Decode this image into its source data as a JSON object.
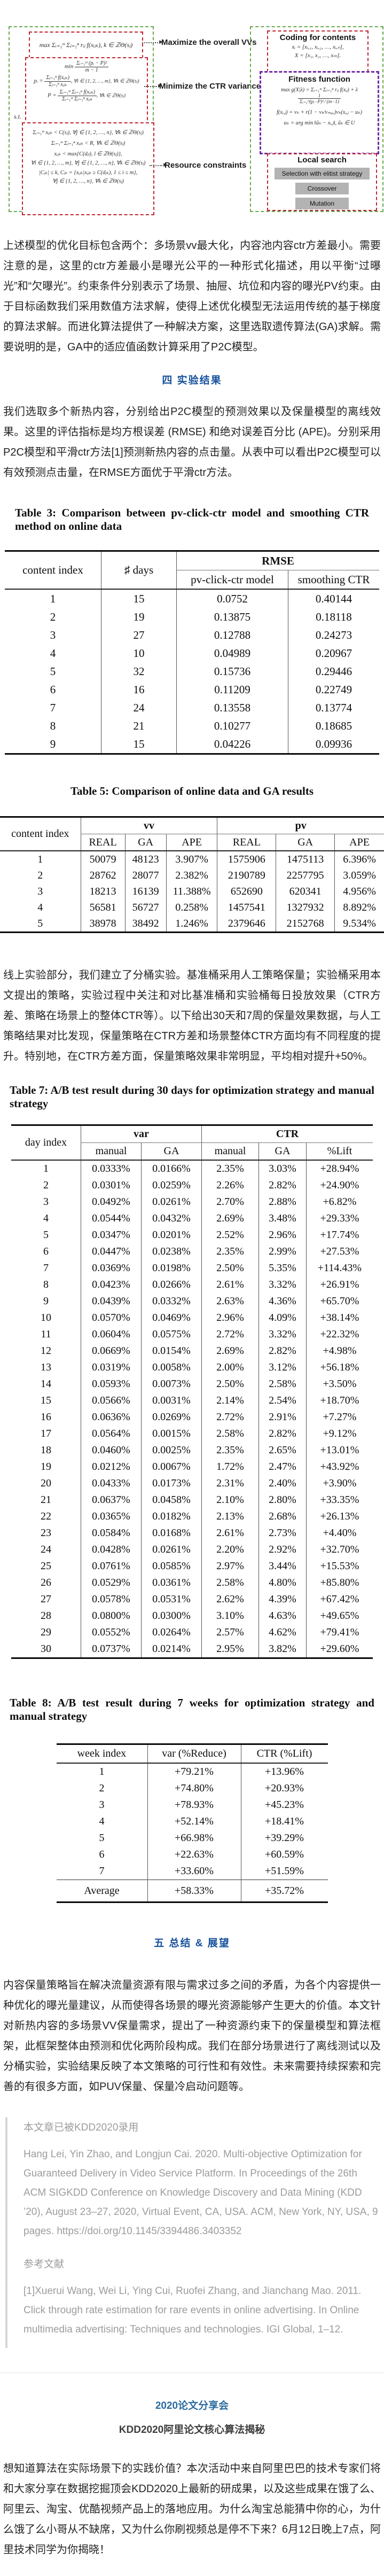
{
  "accent_colors": {
    "green_dashed": "#6aa84f",
    "red_dashed": "#bf2430",
    "purple_dashed": "#6f2da8",
    "button_gray": "#b3b3b3",
    "section_heading_blue": "#16519b",
    "footer_heading_blue": "#2a6a9f",
    "quote_gray": "#9c9c9c"
  },
  "figure": {
    "left": {
      "objective1": "max Σᵢ₌₁ᵐ Σⱼ₌₁ⁿ rᵢⱼ f(xᵢⱼₖ), k ∈ ℤΘ(sⱼ)",
      "min_word": "min",
      "min_num": "Σᵢ₌₁ᵐ (pᵢ − P)²",
      "min_den": "m − 1",
      "pi_lhs": "pᵢ =",
      "pi_num": "Σⱼ₌₁ⁿ f(xᵢⱼₖ)",
      "pi_den": "Σⱼ₌₁ⁿ xᵢⱼₖ",
      "pi_tail": ", ∀i ∈ {1, 2, …, m}, ∀k ∈ ℤΘ(sⱼ)",
      "P_lhs": "P =",
      "P_num": "Σᵢ₌₁ᵐ Σⱼ₌₁ⁿ f(xᵢⱼₖ)",
      "P_den": "Σᵢ₌₁ᵐ Σⱼ₌₁ⁿ xᵢⱼₖ",
      "P_tail": ", ∀k ∈ ℤΘ(sⱼ)",
      "st": "s.t.",
      "c1": "Σᵢ₌₁ᵐ xᵢⱼₖ < C(sⱼ), ∀j ∈ {1, 2, …, n}, ∀k ∈ ℤΘ(sⱼ)",
      "c2": "Σᵢ₌₁ᵐ Σⱼ₌₁ⁿ xᵢⱼₖ < R, ∀k ∈ ℤΘ(sⱼ)",
      "c3a": "xᵢⱼₖ < max{C(dⱼₗ), l ∈ ℤΘ(sⱼ)},",
      "c3b": "∀i ∈ {1, 2, …, m}, ∀j ∈ {1, 2, …, n}, ∀k ∈ ℤΘ(sⱼ)",
      "c4a": "|Cⱼₖ| ≤ k, Cⱼₖ = {xᵢⱼₖ|xᵢⱼₖ ≥ C(dⱼₖ), 1 ≤ i ≤ m},",
      "c4b": "∀j ∈ {1, 2, …, n}, ∀k ∈ ℤΘ(sⱼ)"
    },
    "labels": {
      "maximize": "Maximize the overall VVs",
      "minimize": "Minimize the CTR variance",
      "resource": "Resource constraints"
    },
    "right": {
      "coding_title": "Coding for contents",
      "coding1": "xᵢ = [xᵢ,₁, xᵢ,₂, …, xᵢ,ₙ],",
      "coding2": "X = [x₁, x₂, …, xₘ].",
      "fitness_title": "Fitness function",
      "fit1_pre": "max g(X|λ) = Σᵢ₌₁ᵐ Σⱼ₌₁ⁿ rᵢⱼ f(xᵢⱼ) + λ",
      "fit1_num": "1",
      "fit1_den": "Σᵢ₌₁ᵐ(pᵢ−P)² ⁄ (m−1)",
      "fit2": "f(xᵢ,ⱼ) = vₖ + r(1 − vₖ⁄vₘₐₓ)vₖ(xᵢ,ⱼ − uₖ)",
      "fit3": "uₖ = arg min ‖ũₖ − xᵢ,ⱼ‖, ũₖ ∈ U",
      "local_title": "Local search",
      "btn_selection": "Selection with elitist strategy",
      "btn_crossover": "Crossover",
      "btn_mutation": "Mutation"
    }
  },
  "para1": "上述模型的优化目标包含两个：多场景vv最大化，内容池内容ctr方差最小。需要注意的是，这里的ctr方差最小是曝光公平的一种形式化描述，用以平衡“过曝光”和“欠曝光”。约束条件分别表示了场景、抽屉、坑位和内容的曝光PV约束。由于目标函数我们采用数值方法求解，使得上述优化模型无法运用传统的基于梯度的算法求解。而进化算法提供了一种解决方案，这里选取遗传算法(GA)求解。需要说明的是，GA中的适应值函数计算采用了P2C模型。",
  "section4_title": "四  实验结果",
  "para2": "我们选取多个新热内容，分别给出P2C模型的预测效果以及保量模型的离线效果。这里的评估指标是均方根误差 (RMSE) 和绝对误差百分比 (APE)。分别采用P2C模型和平滑ctr方法[1]预测新热内容的点击量。从表中可以看出P2C模型可以有效预测点击量，在RMSE方面优于平滑ctr方法。",
  "table3": {
    "caption": "Table 3: Comparison between pv-click-ctr model and smoothing CTR method on online data",
    "col_content": "content index",
    "col_days": "♯ days",
    "col_rmse": "RMSE",
    "col_model": "pv-click-ctr model",
    "col_smooth": "smoothing CTR",
    "rows": [
      [
        "1",
        "15",
        "0.0752",
        "0.40144"
      ],
      [
        "2",
        "19",
        "0.13875",
        "0.18118"
      ],
      [
        "3",
        "27",
        "0.12788",
        "0.24273"
      ],
      [
        "4",
        "10",
        "0.04989",
        "0.20967"
      ],
      [
        "5",
        "32",
        "0.15736",
        "0.29446"
      ],
      [
        "6",
        "16",
        "0.11209",
        "0.22749"
      ],
      [
        "7",
        "24",
        "0.13558",
        "0.13774"
      ],
      [
        "8",
        "21",
        "0.10277",
        "0.18685"
      ],
      [
        "9",
        "15",
        "0.04226",
        "0.09936"
      ]
    ]
  },
  "table5": {
    "caption": "Table 5: Comparison of online data and GA results",
    "col_content": "content index",
    "col_vv": "vv",
    "col_pv": "pv",
    "sub": [
      "REAL",
      "GA",
      "APE",
      "REAL",
      "GA",
      "APE"
    ],
    "rows": [
      [
        "1",
        "50079",
        "48123",
        "3.907%",
        "1575906",
        "1475113",
        "6.396%"
      ],
      [
        "2",
        "28762",
        "28077",
        "2.382%",
        "2190789",
        "2257795",
        "3.059%"
      ],
      [
        "3",
        "18213",
        "16139",
        "11.388%",
        "652690",
        "620341",
        "4.956%"
      ],
      [
        "4",
        "56581",
        "56727",
        "0.258%",
        "1457541",
        "1327932",
        "8.892%"
      ],
      [
        "5",
        "38978",
        "38492",
        "1.246%",
        "2379646",
        "2152768",
        "9.534%"
      ]
    ]
  },
  "para3": "线上实验部分，我们建立了分桶实验。基准桶采用人工策略保量；实验桶采用本文提出的策略，实验过程中关注和对比基准桶和实验桶每日投放效果（CTR方差、策略在场景上的整体CTR等）。以下给出30天和7周的保量效果数据，与人工策略结果对比发现，保量策略在CTR方差和场景整体CTR方面均有不同程度的提升。特别地，在CTR方差方面，保量策略效果非常明显，平均相对提升+50%。",
  "table7": {
    "caption": "Table 7: A/B test result during 30 days for optimization strategy and manual strategy",
    "col_day": "day index",
    "col_var": "var",
    "col_ctr": "CTR",
    "sub": [
      "manual",
      "GA",
      "manual",
      "GA",
      "%Lift"
    ],
    "rows": [
      [
        "1",
        "0.0333%",
        "0.0166%",
        "2.35%",
        "3.03%",
        "+28.94%"
      ],
      [
        "2",
        "0.0301%",
        "0.0259%",
        "2.26%",
        "2.82%",
        "+24.90%"
      ],
      [
        "3",
        "0.0492%",
        "0.0261%",
        "2.70%",
        "2.88%",
        "+6.82%"
      ],
      [
        "4",
        "0.0544%",
        "0.0432%",
        "2.69%",
        "3.48%",
        "+29.33%"
      ],
      [
        "5",
        "0.0347%",
        "0.0201%",
        "2.52%",
        "2.96%",
        "+17.74%"
      ],
      [
        "6",
        "0.0447%",
        "0.0238%",
        "2.35%",
        "2.99%",
        "+27.53%"
      ],
      [
        "7",
        "0.0369%",
        "0.0198%",
        "2.50%",
        "5.35%",
        "+114.43%"
      ],
      [
        "8",
        "0.0423%",
        "0.0266%",
        "2.61%",
        "3.32%",
        "+26.91%"
      ],
      [
        "9",
        "0.0439%",
        "0.0332%",
        "2.63%",
        "4.36%",
        "+65.70%"
      ],
      [
        "10",
        "0.0570%",
        "0.0469%",
        "2.96%",
        "4.09%",
        "+38.14%"
      ],
      [
        "11",
        "0.0604%",
        "0.0575%",
        "2.72%",
        "3.32%",
        "+22.32%"
      ],
      [
        "12",
        "0.0669%",
        "0.0154%",
        "2.69%",
        "2.82%",
        "+4.98%"
      ],
      [
        "13",
        "0.0319%",
        "0.0058%",
        "2.00%",
        "3.12%",
        "+56.18%"
      ],
      [
        "14",
        "0.0593%",
        "0.0073%",
        "2.50%",
        "2.58%",
        "+3.50%"
      ],
      [
        "15",
        "0.0566%",
        "0.0031%",
        "2.14%",
        "2.54%",
        "+18.70%"
      ],
      [
        "16",
        "0.0636%",
        "0.0269%",
        "2.72%",
        "2.91%",
        "+7.27%"
      ],
      [
        "17",
        "0.0564%",
        "0.0015%",
        "2.58%",
        "2.82%",
        "+9.12%"
      ],
      [
        "18",
        "0.0460%",
        "0.0025%",
        "2.35%",
        "2.65%",
        "+13.01%"
      ],
      [
        "19",
        "0.0212%",
        "0.0067%",
        "1.72%",
        "2.47%",
        "+43.92%"
      ],
      [
        "20",
        "0.0433%",
        "0.0173%",
        "2.31%",
        "2.40%",
        "+3.90%"
      ],
      [
        "21",
        "0.0637%",
        "0.0458%",
        "2.10%",
        "2.80%",
        "+33.35%"
      ],
      [
        "22",
        "0.0365%",
        "0.0182%",
        "2.13%",
        "2.68%",
        "+26.13%"
      ],
      [
        "23",
        "0.0584%",
        "0.0168%",
        "2.61%",
        "2.73%",
        "+4.40%"
      ],
      [
        "24",
        "0.0428%",
        "0.0261%",
        "2.20%",
        "2.92%",
        "+32.70%"
      ],
      [
        "25",
        "0.0761%",
        "0.0585%",
        "2.97%",
        "3.44%",
        "+15.53%"
      ],
      [
        "26",
        "0.0529%",
        "0.0361%",
        "2.58%",
        "4.80%",
        "+85.80%"
      ],
      [
        "27",
        "0.0578%",
        "0.0531%",
        "2.62%",
        "4.39%",
        "+67.42%"
      ],
      [
        "28",
        "0.0800%",
        "0.0300%",
        "3.10%",
        "4.63%",
        "+49.65%"
      ],
      [
        "29",
        "0.0552%",
        "0.0264%",
        "2.57%",
        "4.62%",
        "+79.41%"
      ],
      [
        "30",
        "0.0737%",
        "0.0214%",
        "2.95%",
        "3.82%",
        "+29.60%"
      ]
    ]
  },
  "table8": {
    "caption": "Table 8: A/B test result during 7 weeks for optimization strategy and manual strategy",
    "headers": [
      "week index",
      "var (%Reduce)",
      "CTR (%Lift)"
    ],
    "rows": [
      [
        "1",
        "+79.21%",
        "+13.96%"
      ],
      [
        "2",
        "+74.80%",
        "+20.93%"
      ],
      [
        "3",
        "+78.93%",
        "+45.23%"
      ],
      [
        "4",
        "+52.14%",
        "+18.41%"
      ],
      [
        "5",
        "+66.98%",
        "+39.29%"
      ],
      [
        "6",
        "+22.63%",
        "+60.59%"
      ],
      [
        "7",
        "+33.60%",
        "+51.59%"
      ]
    ],
    "avg": [
      "Average",
      "+58.33%",
      "+35.72%"
    ]
  },
  "section5_title": "五  总结 & 展望",
  "para4": "内容保量策略旨在解决流量资源有限与需求过多之间的矛盾，为各个内容提供一种优化的曝光量建议，从而使得各场景的曝光资源能够产生更大的价值。本文针对新热内容的多场景VV保量需求，提出了一种资源约束下的保量模型和算法框架，此框架整体由预测和优化两阶段构成。我们在部分场景进行了离线测试以及分桶实验，实验结果反映了本文策略的可行性和有效性。未来需要持续探索和完善的有很多方面，如PUV保量、保量冷启动问题等。",
  "quote": {
    "line1": "本文章已被KDD2020录用",
    "line2": "Hang Lei, Yin Zhao, and Longjun Cai. 2020. Multi-objective Optimization for Guaranteed Delivery in Video Service Platform. In Proceedings of the 26th ACM SIGKDD Conference on Knowledge Discovery and Data Mining (KDD ’20), August 23–27, 2020, Virtual Event, CA, USA. ACM, New York, NY, USA, 9 pages. https://doi.org/10.1145/3394486.3403352",
    "ref_title": "参考文献",
    "ref1": "[1]Xuerui Wang, Wei Li, Ying Cui, Ruofei Zhang, and Jianchang Mao. 2011. Click through rate estimation for rare events in online advertising. In Online multimedia advertising: Techniques and technologies. IGI Global, 1–12."
  },
  "footer": {
    "share_title": "2020论文分享会",
    "kdd_title": "KDD2020阿里论文核心算法揭秘",
    "para": "想知道算法在实际场景下的实践价值？本次活动中来自阿里巴巴的技术专家们将和大家分享在数据挖掘顶会KDD2020上最新的研成果，以及这些成果在饿了么、阿里云、淘宝、优酷视频产品上的落地应用。为什么淘宝总能猜中你的心，为什么饿了么小哥从不缺席，又为什么你刷视频总是停不下来？6月12日晚上7点，阿里技术同学为你揭晓！"
  }
}
